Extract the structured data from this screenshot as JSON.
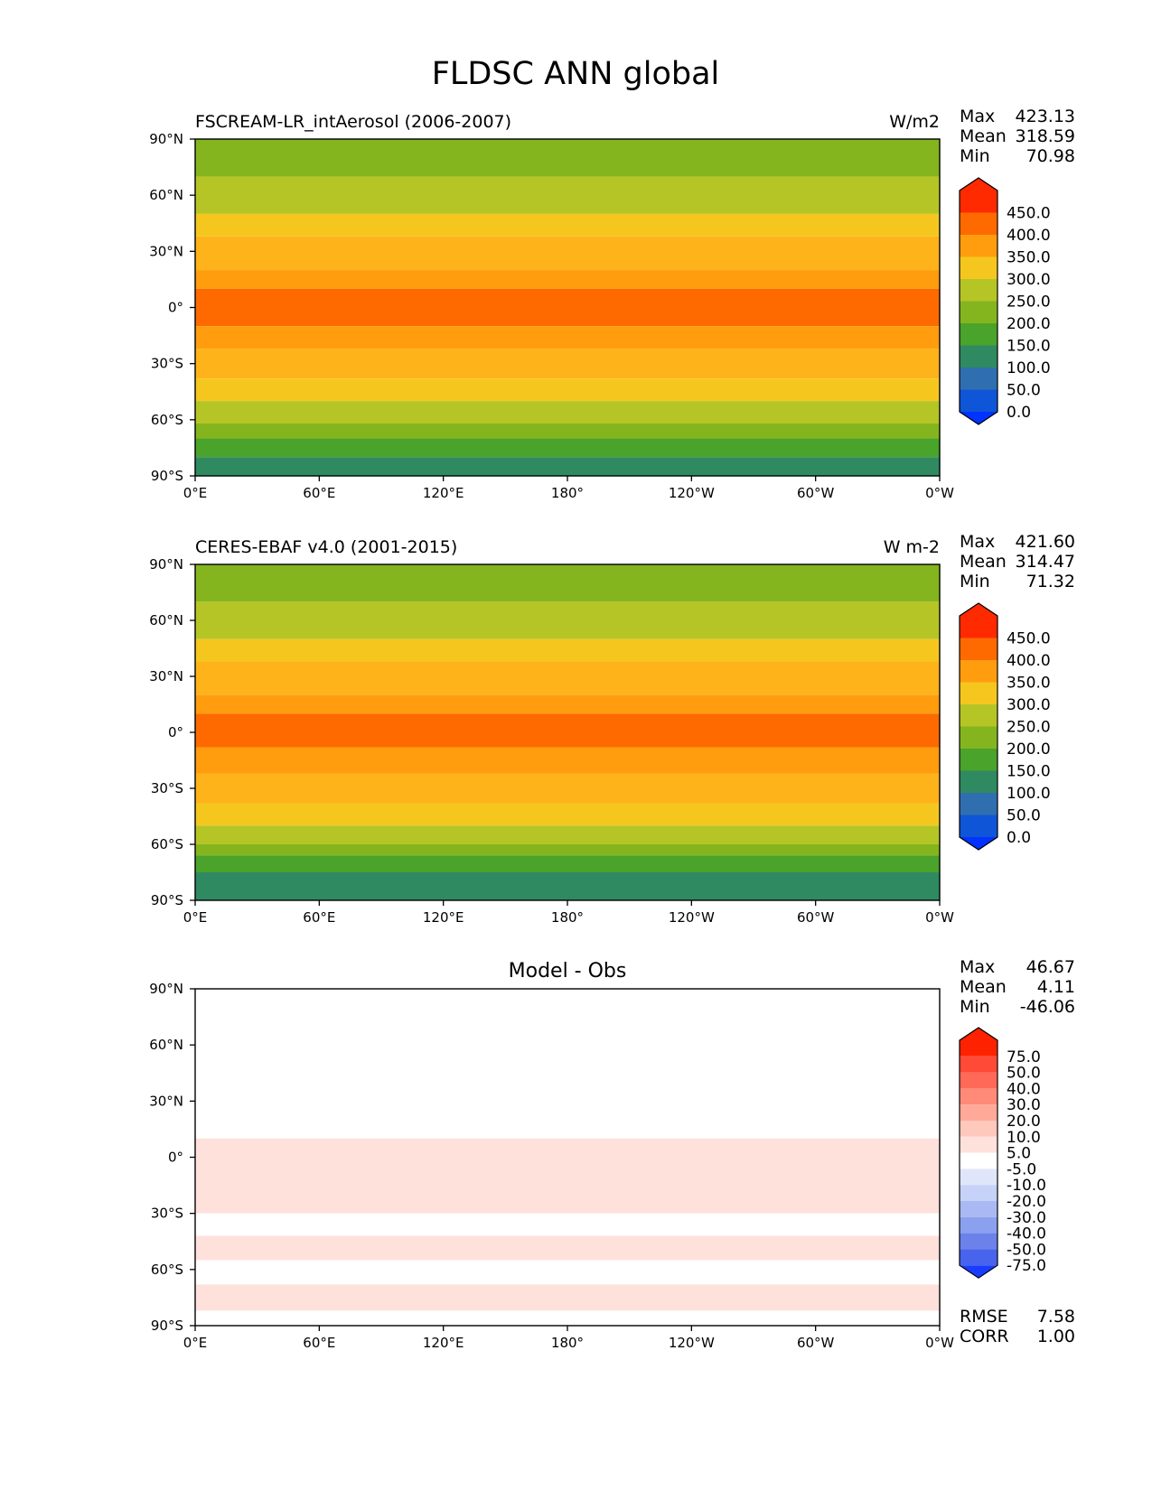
{
  "figure": {
    "title": "FLDSC ANN global"
  },
  "chart_data": [
    {
      "type": "heatmap",
      "title": "FSCREAM-LR_intAerosol (2006-2007)",
      "units": "W/m2",
      "stats": {
        "max": "423.13",
        "mean": "318.59",
        "min": "70.98"
      },
      "x_ticks": [
        "0°E",
        "60°E",
        "120°E",
        "180°",
        "120°W",
        "60°W",
        "0°W"
      ],
      "y_ticks": [
        "90°N",
        "60°N",
        "30°N",
        "0°",
        "30°S",
        "60°S",
        "90°S"
      ],
      "xlim": [
        0,
        360
      ],
      "ylim": [
        -90,
        90
      ],
      "colorbar": {
        "levels": [
          "450.0",
          "400.0",
          "350.0",
          "300.0",
          "250.0",
          "200.0",
          "150.0",
          "100.0",
          "50.0",
          "0.0"
        ],
        "colors": [
          "#ff2a00",
          "#ff6a00",
          "#ff9d0f",
          "#f5c71e",
          "#b5c526",
          "#85b51e",
          "#4aa32a",
          "#2f8a62",
          "#2f6fb0",
          "#0f55d8",
          "#0033ff"
        ]
      },
      "bands": [
        {
          "lat": 90,
          "color": "#85b51e"
        },
        {
          "lat": 70,
          "color": "#b5c526"
        },
        {
          "lat": 50,
          "color": "#f5c71e"
        },
        {
          "lat": 38,
          "color": "#ffb31a"
        },
        {
          "lat": 20,
          "color": "#ff9d0f"
        },
        {
          "lat": 10,
          "color": "#ff6a00"
        },
        {
          "lat": -10,
          "color": "#ff9d0f"
        },
        {
          "lat": -22,
          "color": "#ffb31a"
        },
        {
          "lat": -38,
          "color": "#f5c71e"
        },
        {
          "lat": -50,
          "color": "#b5c526"
        },
        {
          "lat": -62,
          "color": "#85b51e"
        },
        {
          "lat": -70,
          "color": "#4aa32a"
        },
        {
          "lat": -80,
          "color": "#2f8a62"
        }
      ]
    },
    {
      "type": "heatmap",
      "title": "CERES-EBAF v4.0 (2001-2015)",
      "units": "W m-2",
      "stats": {
        "max": "421.60",
        "mean": "314.47",
        "min": "71.32"
      },
      "x_ticks": [
        "0°E",
        "60°E",
        "120°E",
        "180°",
        "120°W",
        "60°W",
        "0°W"
      ],
      "y_ticks": [
        "90°N",
        "60°N",
        "30°N",
        "0°",
        "30°S",
        "60°S",
        "90°S"
      ],
      "xlim": [
        0,
        360
      ],
      "ylim": [
        -90,
        90
      ],
      "colorbar": {
        "levels": [
          "450.0",
          "400.0",
          "350.0",
          "300.0",
          "250.0",
          "200.0",
          "150.0",
          "100.0",
          "50.0",
          "0.0"
        ],
        "colors": [
          "#ff2a00",
          "#ff6a00",
          "#ff9d0f",
          "#f5c71e",
          "#b5c526",
          "#85b51e",
          "#4aa32a",
          "#2f8a62",
          "#2f6fb0",
          "#0f55d8",
          "#0033ff"
        ]
      },
      "bands": [
        {
          "lat": 90,
          "color": "#85b51e"
        },
        {
          "lat": 70,
          "color": "#b5c526"
        },
        {
          "lat": 50,
          "color": "#f5c71e"
        },
        {
          "lat": 38,
          "color": "#ffb31a"
        },
        {
          "lat": 20,
          "color": "#ff9d0f"
        },
        {
          "lat": 10,
          "color": "#ff6a00"
        },
        {
          "lat": -8,
          "color": "#ff9d0f"
        },
        {
          "lat": -22,
          "color": "#ffb31a"
        },
        {
          "lat": -38,
          "color": "#f5c71e"
        },
        {
          "lat": -50,
          "color": "#b5c526"
        },
        {
          "lat": -60,
          "color": "#85b51e"
        },
        {
          "lat": -66,
          "color": "#4aa32a"
        },
        {
          "lat": -75,
          "color": "#2f8a62"
        }
      ]
    },
    {
      "type": "heatmap",
      "title": "Model - Obs",
      "units": "",
      "stats": {
        "max": "46.67",
        "mean": "4.11",
        "min": "-46.06"
      },
      "x_ticks": [
        "0°E",
        "60°E",
        "120°E",
        "180°",
        "120°W",
        "60°W",
        "0°W"
      ],
      "y_ticks": [
        "90°N",
        "60°N",
        "30°N",
        "0°",
        "30°S",
        "60°S",
        "90°S"
      ],
      "xlim": [
        0,
        360
      ],
      "ylim": [
        -90,
        90
      ],
      "colorbar": {
        "levels": [
          "75.0",
          "50.0",
          "40.0",
          "30.0",
          "20.0",
          "10.0",
          "5.0",
          "-5.0",
          "-10.0",
          "-20.0",
          "-30.0",
          "-40.0",
          "-50.0",
          "-75.0"
        ],
        "colors": [
          "#ff2200",
          "#ff4a38",
          "#ff6a58",
          "#ff8a78",
          "#ffaa98",
          "#ffc8bc",
          "#ffe1db",
          "#ffffff",
          "#e0e6fa",
          "#c7d2f8",
          "#aab9f4",
          "#8ba0ee",
          "#6a82ea",
          "#4864ec",
          "#1a3cff"
        ]
      },
      "bands": [
        {
          "lat": 90,
          "color": "#ffffff"
        },
        {
          "lat": 22,
          "color": "#ffffff"
        },
        {
          "lat": 10,
          "color": "#ffe1db"
        },
        {
          "lat": -30,
          "color": "#ffffff"
        },
        {
          "lat": -42,
          "color": "#ffe1db"
        },
        {
          "lat": -55,
          "color": "#ffffff"
        },
        {
          "lat": -68,
          "color": "#ffe1db"
        },
        {
          "lat": -82,
          "color": "#ffffff"
        }
      ],
      "footer": {
        "rmse_label": "RMSE",
        "rmse": "7.58",
        "corr_label": "CORR",
        "corr": "1.00"
      }
    }
  ]
}
